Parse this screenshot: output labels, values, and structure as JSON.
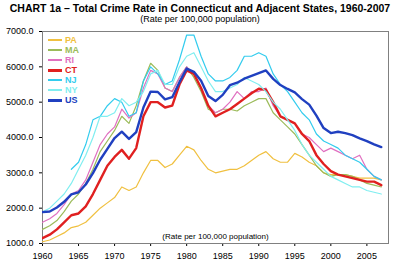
{
  "chart_data": {
    "type": "line",
    "title": "CHART 1a – Total Crime Rate in Connecticut and Adjacent States, 1960-2007",
    "subtitle": "(Rate per 100,000 population)",
    "annotation": "(Rate per 100,000 population)",
    "x": [
      1960,
      1961,
      1962,
      1963,
      1964,
      1965,
      1966,
      1967,
      1968,
      1969,
      1970,
      1971,
      1972,
      1973,
      1974,
      1975,
      1976,
      1977,
      1978,
      1979,
      1980,
      1981,
      1982,
      1983,
      1984,
      1985,
      1986,
      1987,
      1988,
      1989,
      1990,
      1991,
      1992,
      1993,
      1994,
      1995,
      1996,
      1997,
      1998,
      1999,
      2000,
      2001,
      2002,
      2003,
      2004,
      2005,
      2006,
      2007
    ],
    "series": [
      {
        "name": "PA",
        "color": "#f0c040",
        "values": [
          1050,
          1100,
          1200,
          1300,
          1450,
          1500,
          1600,
          1800,
          2000,
          2150,
          2300,
          2600,
          2500,
          2600,
          3000,
          3350,
          3350,
          3150,
          3250,
          3500,
          3750,
          3650,
          3350,
          3100,
          3000,
          3050,
          3100,
          3100,
          3200,
          3350,
          3500,
          3600,
          3400,
          3300,
          3300,
          3550,
          3450,
          3300,
          3200,
          3000,
          2950,
          2950,
          2950,
          2900,
          2850,
          2850,
          2850,
          2800
        ]
      },
      {
        "name": "MA",
        "color": "#9bbb59",
        "values": [
          1400,
          1500,
          1650,
          1900,
          2200,
          2400,
          2700,
          3100,
          3600,
          3900,
          4200,
          4600,
          4400,
          4900,
          5600,
          6100,
          5900,
          5400,
          5300,
          5700,
          6000,
          5700,
          5300,
          4800,
          4700,
          4800,
          4800,
          4750,
          4900,
          5000,
          5100,
          5100,
          4700,
          4500,
          4300,
          4100,
          3800,
          3500,
          3200,
          3000,
          2900,
          2950,
          2950,
          2900,
          2800,
          2700,
          2650,
          2600
        ]
      },
      {
        "name": "RI",
        "color": "#e070c0",
        "values": [
          1600,
          1700,
          1850,
          2100,
          2400,
          2500,
          2800,
          3300,
          3800,
          4100,
          4300,
          4800,
          4550,
          4700,
          5400,
          5900,
          5800,
          5400,
          5300,
          5700,
          6000,
          5800,
          5400,
          4900,
          4700,
          4800,
          5000,
          5300,
          5100,
          5300,
          5300,
          5400,
          4900,
          4600,
          4500,
          4400,
          4100,
          4000,
          3800,
          3600,
          3700,
          3600,
          3500,
          3400,
          3500,
          3100,
          2900,
          2800
        ]
      },
      {
        "name": "CT",
        "color": "#e02020",
        "values": [
          1150,
          1250,
          1400,
          1600,
          1800,
          1850,
          2050,
          2400,
          2800,
          3200,
          3450,
          3650,
          3400,
          3700,
          4600,
          5000,
          5000,
          4850,
          4900,
          5500,
          5900,
          5800,
          5400,
          4900,
          4600,
          4700,
          4800,
          4950,
          5100,
          5250,
          5380,
          5350,
          5000,
          4600,
          4500,
          4400,
          4100,
          3900,
          3500,
          3250,
          3050,
          2950,
          2900,
          2850,
          2800,
          2750,
          2750,
          2650
        ]
      },
      {
        "name": "NJ",
        "color": "#33ccee",
        "values": [
          null,
          null,
          null,
          null,
          3100,
          3300,
          3800,
          4500,
          4600,
          4900,
          5100,
          5000,
          4600,
          4700,
          5600,
          6000,
          5800,
          5500,
          5600,
          6200,
          6900,
          6900,
          6300,
          5800,
          5600,
          5600,
          5700,
          5900,
          6300,
          6300,
          6400,
          6300,
          5800,
          5500,
          5300,
          5000,
          4700,
          4500,
          4100,
          3900,
          3800,
          3700,
          3500,
          3400,
          3300,
          3100,
          2900,
          2800
        ]
      },
      {
        "name": "NY",
        "color": "#80eef0",
        "values": [
          1900,
          2000,
          2200,
          2400,
          2700,
          3100,
          3500,
          4000,
          4600,
          4600,
          4700,
          5100,
          4900,
          5000,
          5300,
          5800,
          5900,
          5500,
          5500,
          6000,
          6300,
          6400,
          6000,
          5600,
          5300,
          5300,
          5400,
          5500,
          5700,
          5600,
          5500,
          5300,
          5000,
          4800,
          4500,
          4200,
          3800,
          3500,
          3300,
          3100,
          2900,
          2800,
          2700,
          2600,
          2600,
          2500,
          2450,
          2400
        ]
      },
      {
        "name": "US",
        "color": "#2040c0",
        "values": [
          1887,
          1906,
          2020,
          2180,
          2388,
          2449,
          2670,
          2990,
          3370,
          3680,
          3985,
          4165,
          3961,
          4154,
          4850,
          5299,
          5287,
          5078,
          5140,
          5566,
          5950,
          5858,
          5604,
          5175,
          5031,
          5207,
          5480,
          5550,
          5664,
          5741,
          5820,
          5898,
          5660,
          5484,
          5374,
          5275,
          5087,
          4930,
          4620,
          4267,
          4125,
          4163,
          4125,
          4067,
          3977,
          3900,
          3808,
          3730
        ]
      }
    ],
    "xlim": [
      1960,
      2008
    ],
    "xticks": [
      1960,
      1965,
      1970,
      1975,
      1980,
      1985,
      1990,
      1995,
      2000,
      2005
    ],
    "ylim": [
      1000,
      7000
    ],
    "yticks": [
      {
        "value": 1000,
        "label": "1000.0"
      },
      {
        "value": 2000,
        "label": "2000.0"
      },
      {
        "value": 3000,
        "label": "3000.0"
      },
      {
        "value": 4000,
        "label": "4000.0"
      },
      {
        "value": 5000,
        "label": "5000.0"
      },
      {
        "value": 6000,
        "label": "6000.0"
      },
      {
        "value": 7000,
        "label": "7000.0"
      }
    ],
    "grid": false,
    "legend": "top-left"
  }
}
